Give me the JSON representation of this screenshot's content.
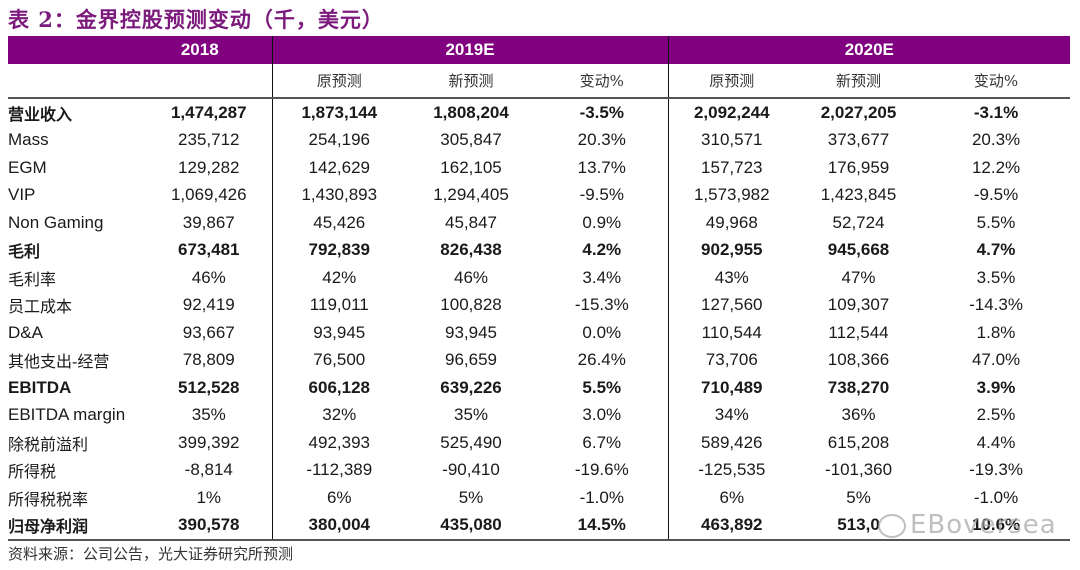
{
  "title": "表 2：金界控股预测变动（千，美元）",
  "header": {
    "years": [
      "2018",
      "2019E",
      "2020E"
    ],
    "subheaders": [
      "原预测",
      "新预测",
      "变动%",
      "原预测",
      "新预测",
      "变动%"
    ]
  },
  "rows": [
    {
      "label": "营业收入",
      "bold": true,
      "cn": true,
      "v2018": "1,474,287",
      "o2019": "1,873,144",
      "n2019": "1,808,204",
      "c2019": "-3.5%",
      "o2020": "2,092,244",
      "n2020": "2,027,205",
      "c2020": "-3.1%"
    },
    {
      "label": "Mass",
      "bold": false,
      "cn": false,
      "v2018": "235,712",
      "o2019": "254,196",
      "n2019": "305,847",
      "c2019": "20.3%",
      "o2020": "310,571",
      "n2020": "373,677",
      "c2020": "20.3%"
    },
    {
      "label": "EGM",
      "bold": false,
      "cn": false,
      "v2018": "129,282",
      "o2019": "142,629",
      "n2019": "162,105",
      "c2019": "13.7%",
      "o2020": "157,723",
      "n2020": "176,959",
      "c2020": "12.2%"
    },
    {
      "label": "VIP",
      "bold": false,
      "cn": false,
      "v2018": "1,069,426",
      "o2019": "1,430,893",
      "n2019": "1,294,405",
      "c2019": "-9.5%",
      "o2020": "1,573,982",
      "n2020": "1,423,845",
      "c2020": "-9.5%"
    },
    {
      "label": "Non Gaming",
      "bold": false,
      "cn": false,
      "v2018": "39,867",
      "o2019": "45,426",
      "n2019": "45,847",
      "c2019": "0.9%",
      "o2020": "49,968",
      "n2020": "52,724",
      "c2020": "5.5%"
    },
    {
      "label": "毛利",
      "bold": true,
      "cn": true,
      "v2018": "673,481",
      "o2019": "792,839",
      "n2019": "826,438",
      "c2019": "4.2%",
      "o2020": "902,955",
      "n2020": "945,668",
      "c2020": "4.7%"
    },
    {
      "label": "毛利率",
      "bold": false,
      "cn": true,
      "v2018": "46%",
      "o2019": "42%",
      "n2019": "46%",
      "c2019": "3.4%",
      "o2020": "43%",
      "n2020": "47%",
      "c2020": "3.5%"
    },
    {
      "label": "员工成本",
      "bold": false,
      "cn": true,
      "v2018": "92,419",
      "o2019": "119,011",
      "n2019": "100,828",
      "c2019": "-15.3%",
      "o2020": "127,560",
      "n2020": "109,307",
      "c2020": "-14.3%"
    },
    {
      "label": "D&A",
      "bold": false,
      "cn": false,
      "v2018": "93,667",
      "o2019": "93,945",
      "n2019": "93,945",
      "c2019": "0.0%",
      "o2020": "110,544",
      "n2020": "112,544",
      "c2020": "1.8%"
    },
    {
      "label": "其他支出-经营",
      "bold": false,
      "cn": true,
      "v2018": "78,809",
      "o2019": "76,500",
      "n2019": "96,659",
      "c2019": "26.4%",
      "o2020": "73,706",
      "n2020": "108,366",
      "c2020": "47.0%"
    },
    {
      "label": "EBITDA",
      "bold": true,
      "cn": false,
      "v2018": "512,528",
      "o2019": "606,128",
      "n2019": "639,226",
      "c2019": "5.5%",
      "o2020": "710,489",
      "n2020": "738,270",
      "c2020": "3.9%"
    },
    {
      "label": "EBITDA margin",
      "bold": false,
      "cn": false,
      "v2018": "35%",
      "o2019": "32%",
      "n2019": "35%",
      "c2019": "3.0%",
      "o2020": "34%",
      "n2020": "36%",
      "c2020": "2.5%"
    },
    {
      "label": "除税前溢利",
      "bold": false,
      "cn": true,
      "v2018": "399,392",
      "o2019": "492,393",
      "n2019": "525,490",
      "c2019": "6.7%",
      "o2020": "589,426",
      "n2020": "615,208",
      "c2020": "4.4%"
    },
    {
      "label": "所得税",
      "bold": false,
      "cn": true,
      "v2018": "-8,814",
      "o2019": "-112,389",
      "n2019": "-90,410",
      "c2019": "-19.6%",
      "o2020": "-125,535",
      "n2020": "-101,360",
      "c2020": "-19.3%"
    },
    {
      "label": "所得税税率",
      "bold": false,
      "cn": true,
      "v2018": "1%",
      "o2019": "6%",
      "n2019": "5%",
      "c2019": "-1.0%",
      "o2020": "6%",
      "n2020": "5%",
      "c2020": "-1.0%"
    },
    {
      "label": "归母净利润",
      "bold": true,
      "cn": true,
      "v2018": "390,578",
      "o2019": "380,004",
      "n2019": "435,080",
      "c2019": "14.5%",
      "o2020": "463,892",
      "n2020": "513,0",
      "c2020": "10.6%"
    }
  ],
  "source": "资料来源：公司公告，光大证券研究所预测",
  "watermark": "EBoversea",
  "colors": {
    "header_bg": "#800080",
    "title": "#7b1a7c"
  }
}
